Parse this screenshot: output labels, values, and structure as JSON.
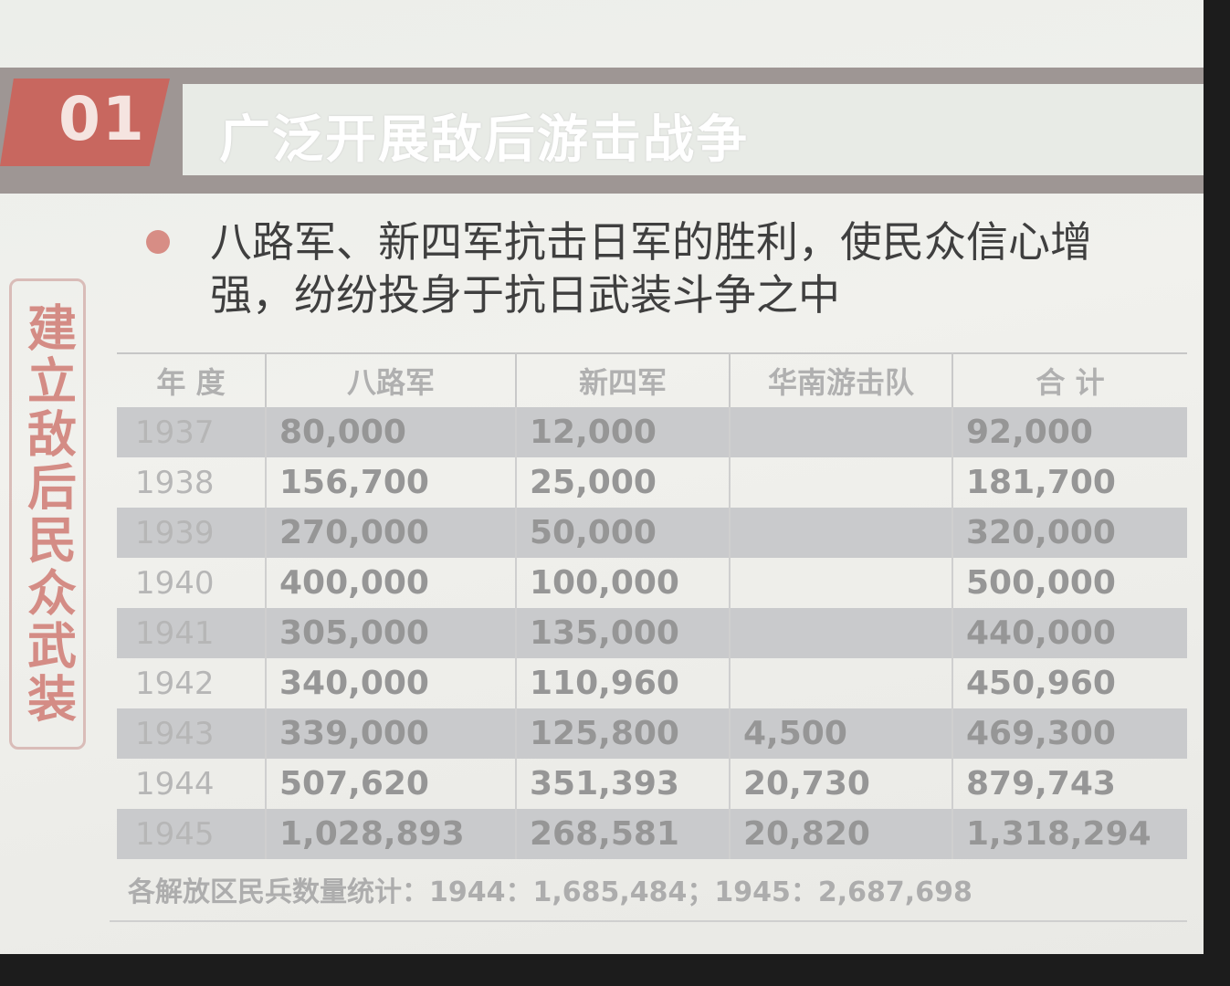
{
  "header": {
    "number": "01",
    "title": "广泛开展敌后游击战争"
  },
  "side_label": "建立敌后民众武装",
  "bullet_text": "八路军、新四军抗击日军的胜利，使民众信心增强，纷纷投身于抗日武装斗争之中",
  "table": {
    "headers": [
      "年 度",
      "八路军",
      "新四军",
      "华南游击队",
      "合 计"
    ],
    "rows": [
      {
        "year": "1937",
        "balujun": "80,000",
        "xinsijun": "12,000",
        "huanan": "",
        "total": "92,000"
      },
      {
        "year": "1938",
        "balujun": "156,700",
        "xinsijun": "25,000",
        "huanan": "",
        "total": "181,700"
      },
      {
        "year": "1939",
        "balujun": "270,000",
        "xinsijun": "50,000",
        "huanan": "",
        "total": "320,000"
      },
      {
        "year": "1940",
        "balujun": "400,000",
        "xinsijun": "100,000",
        "huanan": "",
        "total": "500,000"
      },
      {
        "year": "1941",
        "balujun": "305,000",
        "xinsijun": "135,000",
        "huanan": "",
        "total": "440,000"
      },
      {
        "year": "1942",
        "balujun": "340,000",
        "xinsijun": "110,960",
        "huanan": "",
        "total": "450,960"
      },
      {
        "year": "1943",
        "balujun": "339,000",
        "xinsijun": "125,800",
        "huanan": "4,500",
        "total": "469,300"
      },
      {
        "year": "1944",
        "balujun": "507,620",
        "xinsijun": "351,393",
        "huanan": "20,730",
        "total": "879,743"
      },
      {
        "year": "1945",
        "balujun": "1,028,893",
        "xinsijun": "268,581",
        "huanan": "20,820",
        "total": "1,318,294"
      }
    ]
  },
  "footnote": "各解放区民兵数量统计：1944：1,685,484；1945：2,687,698",
  "colors": {
    "accent": "#c8675f",
    "title_bar": "#9e9694",
    "row_shade": "#c9cacc"
  }
}
